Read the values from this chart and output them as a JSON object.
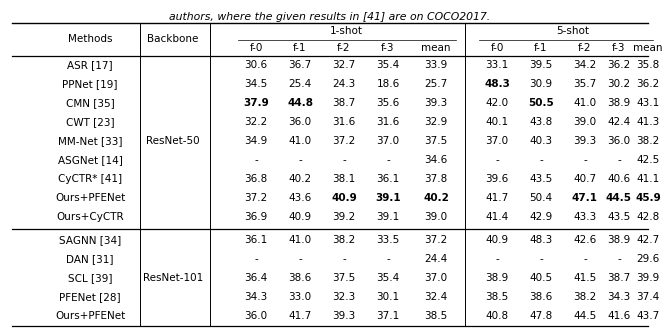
{
  "title_text": "authors, where the given results in [41] are on COCO2017.",
  "group1_backbone": "ResNet-50",
  "group2_backbone": "ResNet-101",
  "rows_group1": [
    {
      "method": "ASR [17]",
      "s1": [
        "30.6",
        "36.7",
        "32.7",
        "35.4",
        "33.9"
      ],
      "s5": [
        "33.1",
        "39.5",
        "34.2",
        "36.2",
        "35.8"
      ],
      "bold_s1": [],
      "bold_s5": []
    },
    {
      "method": "PPNet [19]",
      "s1": [
        "34.5",
        "25.4",
        "24.3",
        "18.6",
        "25.7"
      ],
      "s5": [
        "48.3",
        "30.9",
        "35.7",
        "30.2",
        "36.2"
      ],
      "bold_s1": [],
      "bold_s5": [
        0
      ]
    },
    {
      "method": "CMN [35]",
      "s1": [
        "37.9",
        "44.8",
        "38.7",
        "35.6",
        "39.3"
      ],
      "s5": [
        "42.0",
        "50.5",
        "41.0",
        "38.9",
        "43.1"
      ],
      "bold_s1": [
        0,
        1
      ],
      "bold_s5": [
        1
      ]
    },
    {
      "method": "CWT [23]",
      "s1": [
        "32.2",
        "36.0",
        "31.6",
        "31.6",
        "32.9"
      ],
      "s5": [
        "40.1",
        "43.8",
        "39.0",
        "42.4",
        "41.3"
      ],
      "bold_s1": [],
      "bold_s5": []
    },
    {
      "method": "MM-Net [33]",
      "s1": [
        "34.9",
        "41.0",
        "37.2",
        "37.0",
        "37.5"
      ],
      "s5": [
        "37.0",
        "40.3",
        "39.3",
        "36.0",
        "38.2"
      ],
      "bold_s1": [],
      "bold_s5": []
    },
    {
      "method": "ASGNet [14]",
      "s1": [
        "-",
        "-",
        "-",
        "-",
        "34.6"
      ],
      "s5": [
        "-",
        "-",
        "-",
        "-",
        "42.5"
      ],
      "bold_s1": [],
      "bold_s5": []
    },
    {
      "method": "CyCTR* [41]",
      "s1": [
        "36.8",
        "40.2",
        "38.1",
        "36.1",
        "37.8"
      ],
      "s5": [
        "39.6",
        "43.5",
        "40.7",
        "40.6",
        "41.1"
      ],
      "bold_s1": [],
      "bold_s5": []
    },
    {
      "method": "Ours+PFENet",
      "s1": [
        "37.2",
        "43.6",
        "40.9",
        "39.1",
        "40.2"
      ],
      "s5": [
        "41.7",
        "50.4",
        "47.1",
        "44.5",
        "45.9"
      ],
      "bold_s1": [
        2,
        3,
        4
      ],
      "bold_s5": [
        2,
        3,
        4
      ]
    },
    {
      "method": "Ours+CyCTR",
      "s1": [
        "36.9",
        "40.9",
        "39.2",
        "39.1",
        "39.0"
      ],
      "s5": [
        "41.4",
        "42.9",
        "43.3",
        "43.5",
        "42.8"
      ],
      "bold_s1": [],
      "bold_s5": []
    }
  ],
  "rows_group2": [
    {
      "method": "SAGNN [34]",
      "s1": [
        "36.1",
        "41.0",
        "38.2",
        "33.5",
        "37.2"
      ],
      "s5": [
        "40.9",
        "48.3",
        "42.6",
        "38.9",
        "42.7"
      ],
      "bold_s1": [],
      "bold_s5": []
    },
    {
      "method": "DAN [31]",
      "s1": [
        "-",
        "-",
        "-",
        "-",
        "24.4"
      ],
      "s5": [
        "-",
        "-",
        "-",
        "-",
        "29.6"
      ],
      "bold_s1": [],
      "bold_s5": []
    },
    {
      "method": "SCL [39]",
      "s1": [
        "36.4",
        "38.6",
        "37.5",
        "35.4",
        "37.0"
      ],
      "s5": [
        "38.9",
        "40.5",
        "41.5",
        "38.7",
        "39.9"
      ],
      "bold_s1": [],
      "bold_s5": []
    },
    {
      "method": "PFENet [28]",
      "s1": [
        "34.3",
        "33.0",
        "32.3",
        "30.1",
        "32.4"
      ],
      "s5": [
        "38.5",
        "38.6",
        "38.2",
        "34.3",
        "37.4"
      ],
      "bold_s1": [],
      "bold_s5": []
    },
    {
      "method": "Ours+PFENet",
      "s1": [
        "36.0",
        "41.7",
        "39.3",
        "37.1",
        "38.5"
      ],
      "s5": [
        "40.8",
        "47.8",
        "44.5",
        "41.6",
        "43.7"
      ],
      "bold_s1": [],
      "bold_s5": []
    }
  ],
  "bg_color": "#ffffff",
  "text_color": "#000000",
  "fontsize": 7.5,
  "title_fontsize": 7.8
}
